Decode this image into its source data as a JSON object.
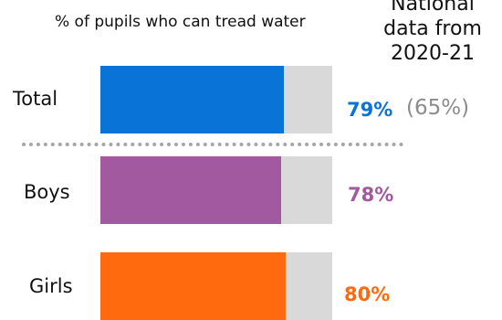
{
  "chart": {
    "subtitle": "% of pupils who can tread water",
    "national_note_lines": [
      "National",
      "data from",
      "2020-21"
    ]
  },
  "rows": [
    {
      "label": "Total",
      "value_text": "79%",
      "compare_text": "(65%)",
      "color": "#0a73d8"
    },
    {
      "label": "Boys",
      "value_text": "78%",
      "color": "#a3599f"
    },
    {
      "label": "Girls",
      "value_text": "80%",
      "color": "#ff6a0e"
    }
  ],
  "colors": {
    "track": "#d9d9d9",
    "divider": "#a6a6a6",
    "compare_text": "#8c8c8c"
  },
  "chart_data": {
    "type": "bar",
    "orientation": "horizontal",
    "title": "",
    "subtitle": "% of pupils who can tread water",
    "categories": [
      "Total",
      "Boys",
      "Girls"
    ],
    "values": [
      79,
      78,
      80
    ],
    "value_labels": [
      "79%",
      "78%",
      "80%"
    ],
    "comparison": {
      "label": "National data from 2020-21",
      "Total": 65,
      "Total_text": "(65%)"
    },
    "xlim": [
      0,
      100
    ],
    "grid": false,
    "legend": "none"
  }
}
